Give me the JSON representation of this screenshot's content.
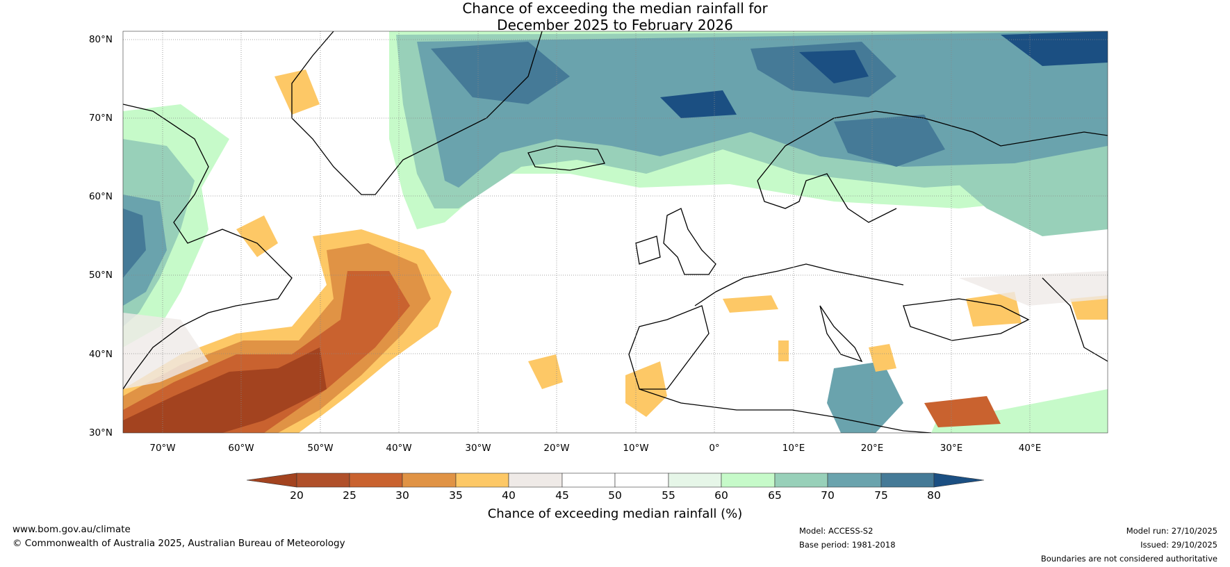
{
  "title": {
    "line1": "Chance of exceeding the median rainfall for",
    "line2": "December 2025 to February 2026"
  },
  "map": {
    "lon_range": [
      -75,
      50
    ],
    "lat_range": [
      30,
      80
    ],
    "lat_ticks": [
      "80°N",
      "70°N",
      "60°N",
      "50°N",
      "40°N",
      "30°N"
    ],
    "lon_ticks": [
      "70°W",
      "60°W",
      "50°W",
      "40°W",
      "30°W",
      "20°W",
      "10°W",
      "0°",
      "10°E",
      "20°E",
      "30°E",
      "40°E"
    ]
  },
  "colorbar": {
    "ticks": [
      "20",
      "25",
      "30",
      "35",
      "40",
      "45",
      "50",
      "55",
      "60",
      "65",
      "70",
      "75",
      "80"
    ],
    "colors": [
      "#a3431f",
      "#b0502a",
      "#c9622f",
      "#e09345",
      "#fdc866",
      "#efeae7",
      "#ffffff",
      "#ffffff",
      "#e6f6e8",
      "#c6fac9",
      "#98d0b9",
      "#6aa3ad",
      "#457a97",
      "#1b4f82"
    ],
    "label": "Chance of exceeding median rainfall (%)"
  },
  "footer": {
    "website": "www.bom.gov.au/climate",
    "copyright": "© Commonwealth of Australia 2025, Australian Bureau of Meteorology",
    "model": "Model: ACCESS-S2",
    "base_period": "Base period: 1981-2018",
    "model_run": "Model run: 27/10/2025",
    "issued": "Issued: 29/10/2025",
    "disclaimer": "Boundaries are not considered authoritative"
  }
}
